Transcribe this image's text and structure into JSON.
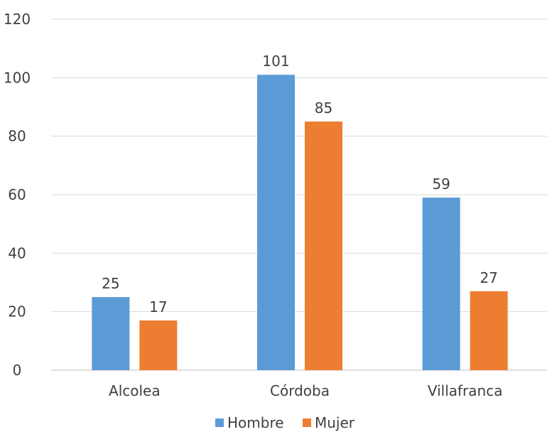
{
  "chart_data": {
    "type": "bar",
    "title": "",
    "xlabel": "",
    "ylabel": "",
    "categories": [
      "Alcolea",
      "Córdoba",
      "Villafranca"
    ],
    "series": [
      {
        "name": "Hombre",
        "values": [
          25,
          101,
          59
        ],
        "color": "#5b9bd5"
      },
      {
        "name": "Mujer",
        "values": [
          17,
          85,
          27
        ],
        "color": "#ed7d31"
      }
    ],
    "ylim": [
      0,
      120
    ],
    "yticks": [
      0,
      20,
      40,
      60,
      80,
      100,
      120
    ],
    "grid": true,
    "legend_position": "bottom",
    "data_labels": true
  }
}
